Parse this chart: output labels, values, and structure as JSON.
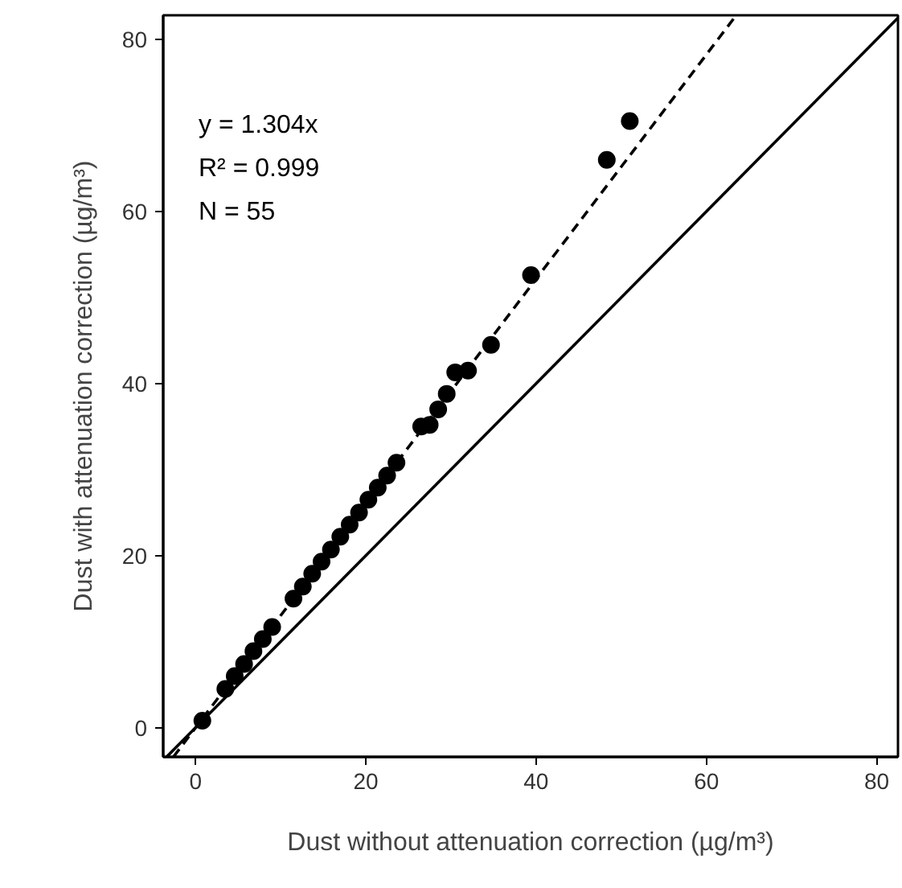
{
  "chart_data": {
    "type": "scatter",
    "xlabel": "Dust without attenuation correction (µg/m³)",
    "ylabel": "Dust with attenuation correction (µg/m³)",
    "xlim": [
      -3.8,
      82.5
    ],
    "ylim": [
      -3.4,
      82.8
    ],
    "xticks": [
      0,
      20,
      40,
      60,
      80
    ],
    "yticks": [
      0,
      20,
      40,
      60,
      80
    ],
    "grid": false,
    "annotations": [
      "y = 1.304x",
      "R² = 0.999",
      "N = 55"
    ],
    "series": [
      {
        "marker": "circle",
        "color": "#000000",
        "x": [
          0.8,
          3.5,
          4.6,
          5.7,
          6.8,
          7.9,
          9.0,
          11.5,
          12.6,
          13.7,
          14.8,
          15.9,
          17.0,
          18.1,
          19.2,
          20.3,
          21.4,
          22.5,
          23.6,
          26.5,
          27.5,
          28.5,
          29.5,
          30.5,
          32,
          34.7,
          39.4,
          48.3,
          51
        ],
        "values": [
          0.8,
          4.5,
          6.0,
          7.4,
          8.9,
          10.3,
          11.7,
          15.0,
          16.4,
          17.9,
          19.3,
          20.7,
          22.2,
          23.6,
          25.0,
          26.5,
          27.9,
          29.3,
          30.8,
          35.0,
          35.2,
          37.0,
          38.8,
          41.3,
          41.5,
          44.5,
          52.6,
          66.0,
          70.5
        ]
      },
      {
        "type": "line",
        "line_style": "dashed",
        "color": "#000000",
        "x": [
          -2.6,
          63.5
        ],
        "values": [
          -3.4,
          82.8
        ]
      },
      {
        "type": "line",
        "line_style": "solid",
        "color": "#000000",
        "x": [
          -3.4,
          82.5
        ],
        "values": [
          -3.4,
          82.5
        ]
      }
    ]
  }
}
